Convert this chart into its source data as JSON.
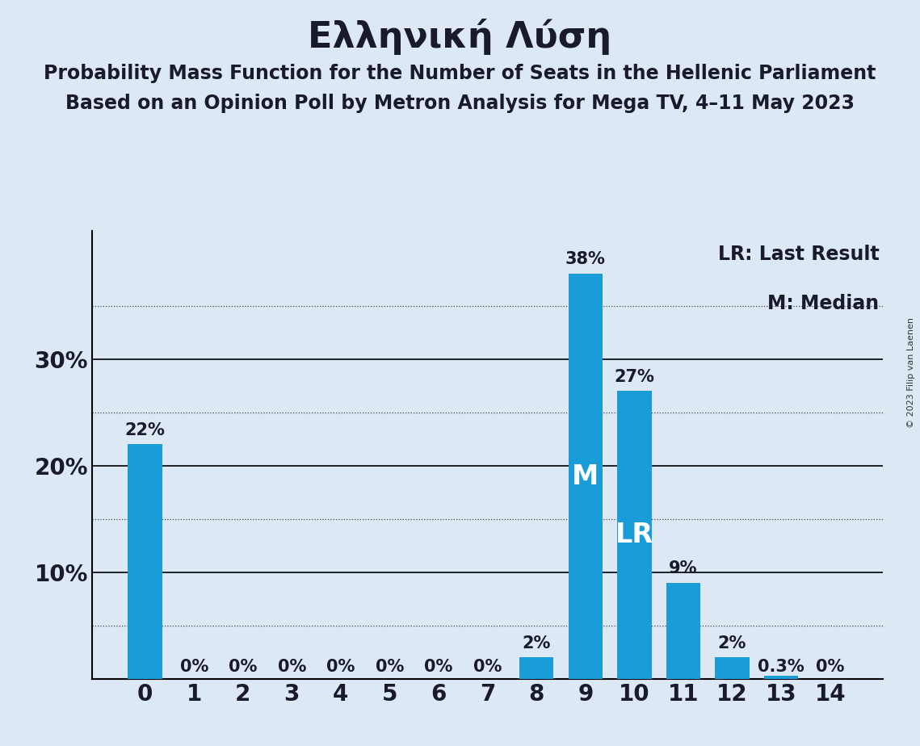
{
  "title": "Ελληνική Λύση",
  "subtitle1": "Probability Mass Function for the Number of Seats in the Hellenic Parliament",
  "subtitle2": "Based on an Opinion Poll by Metron Analysis for Mega TV, 4–11 May 2023",
  "copyright": "© 2023 Filip van Laenen",
  "legend1": "LR: Last Result",
  "legend2": "M: Median",
  "categories": [
    0,
    1,
    2,
    3,
    4,
    5,
    6,
    7,
    8,
    9,
    10,
    11,
    12,
    13,
    14
  ],
  "values": [
    0.22,
    0.0,
    0.0,
    0.0,
    0.0,
    0.0,
    0.0,
    0.0,
    0.02,
    0.38,
    0.27,
    0.09,
    0.02,
    0.003,
    0.0
  ],
  "bar_labels": [
    "22%",
    "0%",
    "0%",
    "0%",
    "0%",
    "0%",
    "0%",
    "0%",
    "2%",
    "38%",
    "27%",
    "9%",
    "2%",
    "0.3%",
    "0%"
  ],
  "median_bar": 9,
  "lr_bar": 10,
  "bar_color": "#1a9cd8",
  "background_color": "#dce9f5",
  "text_color": "#1a1a2e",
  "ylim": [
    0,
    0.42
  ],
  "yticks": [
    0.0,
    0.1,
    0.2,
    0.3
  ],
  "dotted_lines": [
    0.05,
    0.15,
    0.25,
    0.35
  ],
  "title_fontsize": 32,
  "subtitle_fontsize": 17,
  "tick_fontsize": 20,
  "bar_label_fontsize": 15,
  "inbar_fontsize": 24,
  "legend_fontsize": 17
}
